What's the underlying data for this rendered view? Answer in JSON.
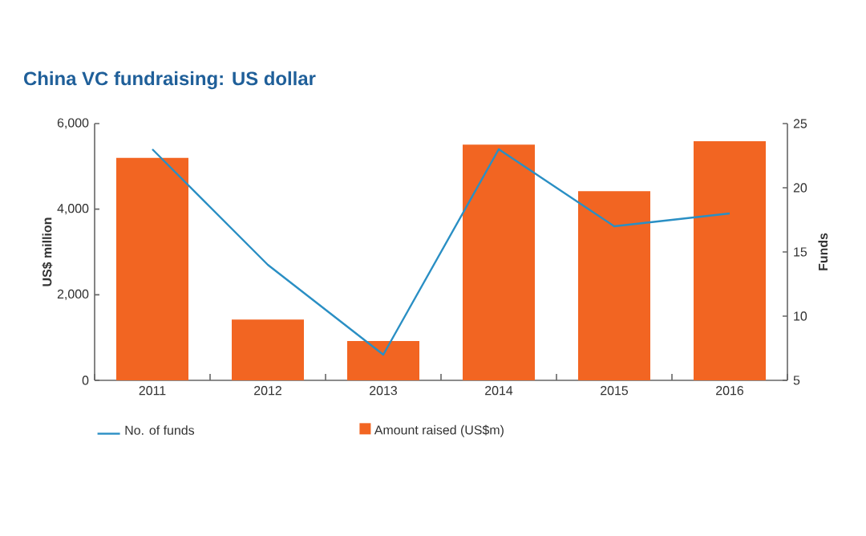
{
  "chart_data": {
    "type": "bar",
    "title": "China VC fundraising: US dollar",
    "xlabel": null,
    "ylabel": "US$ million",
    "y2label": "Funds",
    "categories": [
      "2011",
      "2012",
      "2013",
      "2014",
      "2015",
      "2016"
    ],
    "series": [
      {
        "name": "Amount raised (US$m)",
        "color": "#f26522",
        "values": [
          5200,
          1420,
          920,
          5510,
          4420,
          5590
        ]
      },
      {
        "name": "No. of funds",
        "type": "line",
        "axis": "y2",
        "color": "#2a8fc4",
        "marker": "none",
        "values": [
          23,
          14,
          7,
          23,
          17,
          18
        ]
      }
    ],
    "ylim": [
      0,
      6000
    ],
    "yticks": [
      {
        "value": 0,
        "label": "0"
      },
      {
        "value": 2000,
        "label": "2,000"
      },
      {
        "value": 4000,
        "label": "4,000"
      },
      {
        "value": 6000,
        "label": "6,000"
      }
    ],
    "y2lim": [
      5,
      25
    ],
    "y2ticks": [
      5,
      10,
      15,
      20,
      25
    ],
    "legend": "bottom",
    "grid": false
  }
}
